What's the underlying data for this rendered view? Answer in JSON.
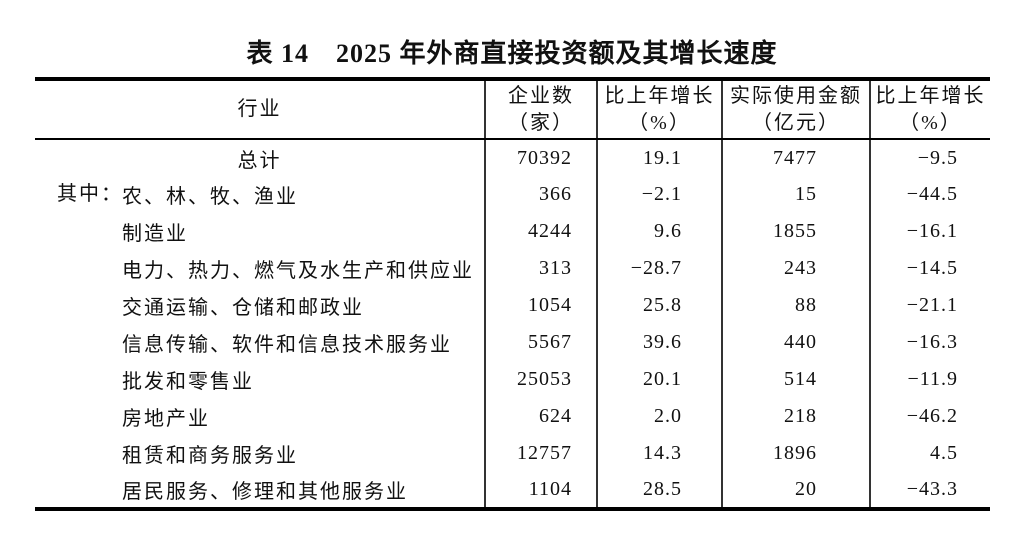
{
  "title": "表 14　2025 年外商直接投资额及其增长速度",
  "table": {
    "headers": [
      {
        "line1": "行业",
        "line2": ""
      },
      {
        "line1": "企业数",
        "line2": "（家）"
      },
      {
        "line1": "比上年增长",
        "line2": "（%）"
      },
      {
        "line1": "实际使用金额",
        "line2": "（亿元）"
      },
      {
        "line1": "比上年增长",
        "line2": "（%）"
      }
    ],
    "rows": [
      {
        "prefix": "",
        "name": "总计",
        "align": "center",
        "values": [
          "70392",
          "19.1",
          "7477",
          "−9.5"
        ]
      },
      {
        "prefix": "其中：",
        "name": "农、林、牧、渔业",
        "align": "left",
        "values": [
          "366",
          "−2.1",
          "15",
          "−44.5"
        ]
      },
      {
        "prefix": "",
        "name": "制造业",
        "align": "left",
        "values": [
          "4244",
          "9.6",
          "1855",
          "−16.1"
        ]
      },
      {
        "prefix": "",
        "name": "电力、热力、燃气及水生产和供应业",
        "align": "left",
        "values": [
          "313",
          "−28.7",
          "243",
          "−14.5"
        ]
      },
      {
        "prefix": "",
        "name": "交通运输、仓储和邮政业",
        "align": "left",
        "values": [
          "1054",
          "25.8",
          "88",
          "−21.1"
        ]
      },
      {
        "prefix": "",
        "name": "信息传输、软件和信息技术服务业",
        "align": "left",
        "values": [
          "5567",
          "39.6",
          "440",
          "−16.3"
        ]
      },
      {
        "prefix": "",
        "name": "批发和零售业",
        "align": "left",
        "values": [
          "25053",
          "20.1",
          "514",
          "−11.9"
        ]
      },
      {
        "prefix": "",
        "name": "房地产业",
        "align": "left",
        "values": [
          "624",
          "2.0",
          "218",
          "−46.2"
        ]
      },
      {
        "prefix": "",
        "name": "租赁和商务服务业",
        "align": "left",
        "values": [
          "12757",
          "14.3",
          "1896",
          "4.5"
        ]
      },
      {
        "prefix": "",
        "name": "居民服务、修理和其他服务业",
        "align": "left",
        "values": [
          "1104",
          "28.5",
          "20",
          "−43.3"
        ]
      }
    ]
  },
  "chart_data": {
    "type": "table",
    "title": "表 14　2025 年外商直接投资额及其增长速度",
    "columns": [
      "行业",
      "企业数（家）",
      "比上年增长（%）",
      "实际使用金额（亿元）",
      "比上年增长（%）"
    ],
    "rows": [
      [
        "总计",
        70392,
        19.1,
        7477,
        -9.5
      ],
      [
        "农、林、牧、渔业",
        366,
        -2.1,
        15,
        -44.5
      ],
      [
        "制造业",
        4244,
        9.6,
        1855,
        -16.1
      ],
      [
        "电力、热力、燃气及水生产和供应业",
        313,
        -28.7,
        243,
        -14.5
      ],
      [
        "交通运输、仓储和邮政业",
        1054,
        25.8,
        88,
        -21.1
      ],
      [
        "信息传输、软件和信息技术服务业",
        5567,
        39.6,
        440,
        -16.3
      ],
      [
        "批发和零售业",
        25053,
        20.1,
        514,
        -11.9
      ],
      [
        "房地产业",
        624,
        2.0,
        218,
        -46.2
      ],
      [
        "租赁和商务服务业",
        12757,
        14.3,
        1896,
        4.5
      ],
      [
        "居民服务、修理和其他服务业",
        1104,
        28.5,
        20,
        -43.3
      ]
    ]
  },
  "colors": {
    "text": "#111111",
    "border": "#000000",
    "rule": "#333333",
    "background": "#ffffff"
  }
}
